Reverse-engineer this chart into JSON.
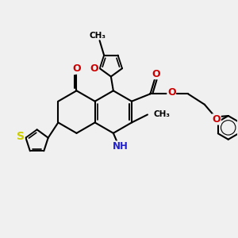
{
  "background_color": "#f0f0f0",
  "bond_color": "#000000",
  "bond_width": 1.5,
  "N_color": "#2020cc",
  "O_color": "#cc0000",
  "S_color": "#cccc00",
  "font_size": 9,
  "xlim": [
    0,
    10
  ],
  "ylim": [
    0,
    10
  ]
}
